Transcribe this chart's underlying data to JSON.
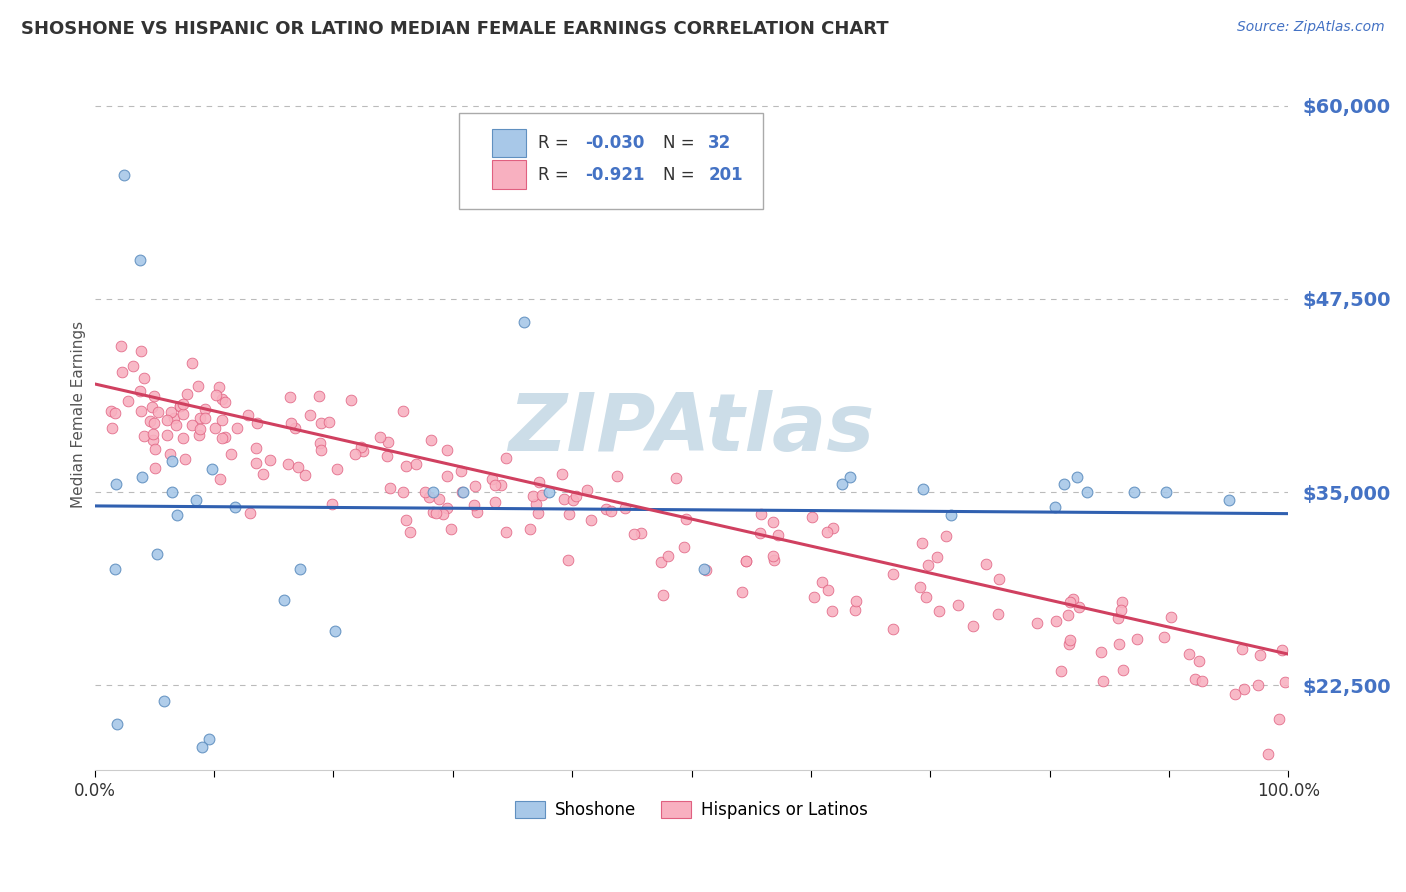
{
  "title": "SHOSHONE VS HISPANIC OR LATINO MEDIAN FEMALE EARNINGS CORRELATION CHART",
  "source": "Source: ZipAtlas.com",
  "ylabel": "Median Female Earnings",
  "yticks": [
    22500,
    35000,
    47500,
    60000
  ],
  "ytick_labels": [
    "$22,500",
    "$35,000",
    "$47,500",
    "$60,000"
  ],
  "xmin": 0.0,
  "xmax": 1.0,
  "ymin": 17000,
  "ymax": 63000,
  "shoshone_color": "#a8c8e8",
  "shoshone_edge": "#6090c0",
  "hispanic_color": "#f8b0c0",
  "hispanic_edge": "#e06080",
  "line_shoshone_color": "#3060b0",
  "line_hispanic_color": "#d04060",
  "background_color": "#ffffff",
  "text_color": "#4472c4",
  "legend_text_color": "#4472c4",
  "watermark_color": "#ccdde8",
  "grid_color": "#bbbbbb",
  "title_color": "#333333",
  "sh_line_y0": 34100,
  "sh_line_y1": 33600,
  "hi_line_y0": 42000,
  "hi_line_y1": 24500
}
